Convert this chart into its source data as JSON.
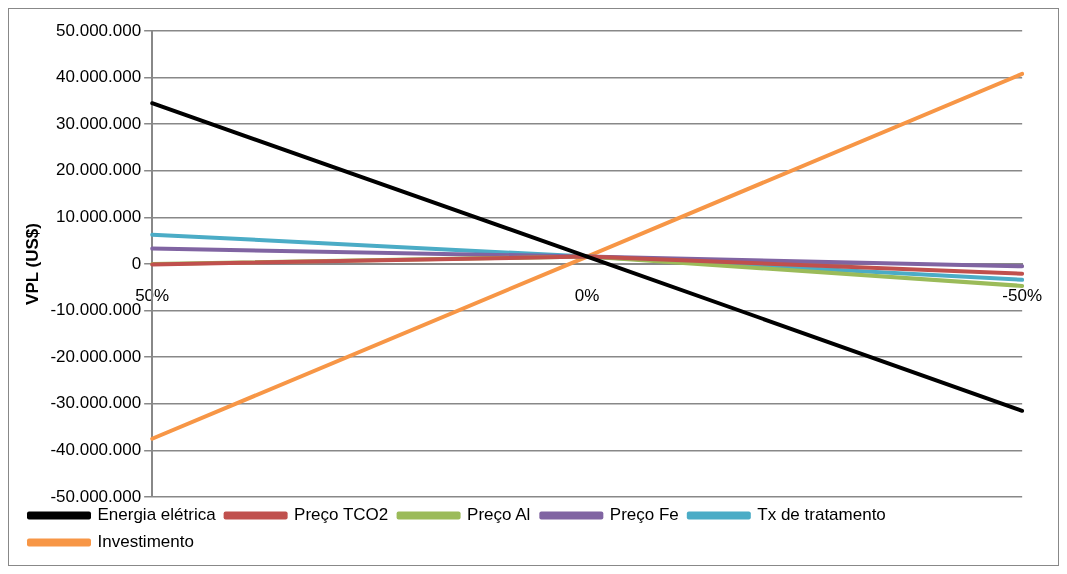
{
  "chart_data": {
    "type": "line",
    "ylabel": "VPL (US$)",
    "categories": [
      "50%",
      "0%",
      "-50%"
    ],
    "series": [
      {
        "name": "Energia elétrica",
        "color": "#000000",
        "values": [
          34500000,
          1600000,
          -31500000
        ]
      },
      {
        "name": "Preço TCO2",
        "color": "#c0504d",
        "values": [
          -100000,
          1600000,
          -2100000
        ]
      },
      {
        "name": "Preço Al",
        "color": "#9bbb59",
        "values": [
          0,
          1600000,
          -4700000
        ]
      },
      {
        "name": "Preço Fe",
        "color": "#8064a2",
        "values": [
          3300000,
          1600000,
          -500000
        ]
      },
      {
        "name": "Tx de tratamento",
        "color": "#4bacc6",
        "values": [
          6300000,
          1600000,
          -3400000
        ]
      },
      {
        "name": "Investimento",
        "color": "#f79646",
        "values": [
          -37500000,
          1600000,
          40800000
        ]
      }
    ],
    "ylim": [
      -50000000,
      50000000
    ],
    "yticks": [
      {
        "value": -50000000,
        "label": "-50.000.000"
      },
      {
        "value": -40000000,
        "label": "-40.000.000"
      },
      {
        "value": -30000000,
        "label": "-30.000.000"
      },
      {
        "value": -20000000,
        "label": "-20.000.000"
      },
      {
        "value": -10000000,
        "label": "-10.000.000"
      },
      {
        "value": 0,
        "label": "0"
      },
      {
        "value": 10000000,
        "label": "10.000.000"
      },
      {
        "value": 20000000,
        "label": "20.000.000"
      },
      {
        "value": 30000000,
        "label": "30.000.000"
      },
      {
        "value": 40000000,
        "label": "40.000.000"
      },
      {
        "value": 50000000,
        "label": "50.000.000"
      }
    ],
    "grid": "y",
    "legend": "bottom",
    "marker": "none",
    "line_style": "solid"
  }
}
